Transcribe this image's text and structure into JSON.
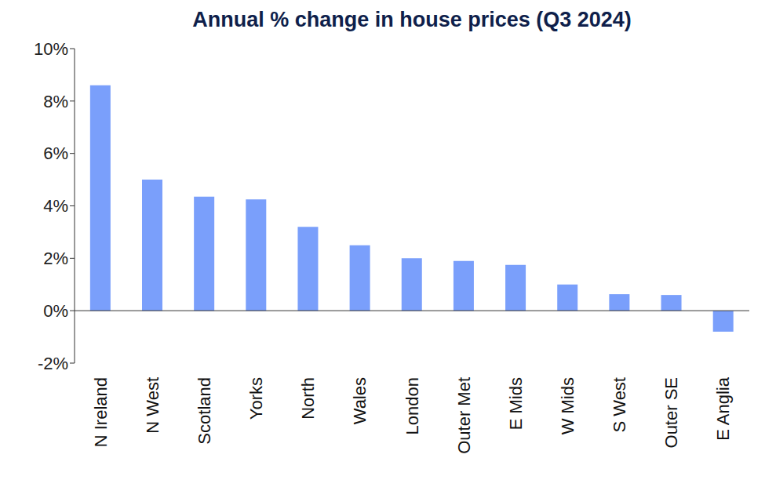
{
  "chart_data": {
    "type": "bar",
    "title": "Annual % change in house prices (Q3 2024)",
    "categories": [
      "N Ireland",
      "N West",
      "Scotland",
      "Yorks",
      "North",
      "Wales",
      "London",
      "Outer Met",
      "E Mids",
      "W Mids",
      "S West",
      "Outer SE",
      "E Anglia"
    ],
    "values": [
      8.6,
      5.0,
      4.35,
      4.25,
      3.2,
      2.5,
      2.0,
      1.9,
      1.75,
      1.0,
      0.63,
      0.6,
      -0.8
    ],
    "color": "#7a9ffb",
    "ylim": [
      -2,
      10
    ],
    "yticks": [
      {
        "value": -2,
        "label": "-2%"
      },
      {
        "value": 0,
        "label": "0%"
      },
      {
        "value": 2,
        "label": "2%"
      },
      {
        "value": 4,
        "label": "4%"
      },
      {
        "value": 6,
        "label": "6%"
      },
      {
        "value": 8,
        "label": "8%"
      },
      {
        "value": 10,
        "label": "10%"
      }
    ],
    "grid": false
  }
}
